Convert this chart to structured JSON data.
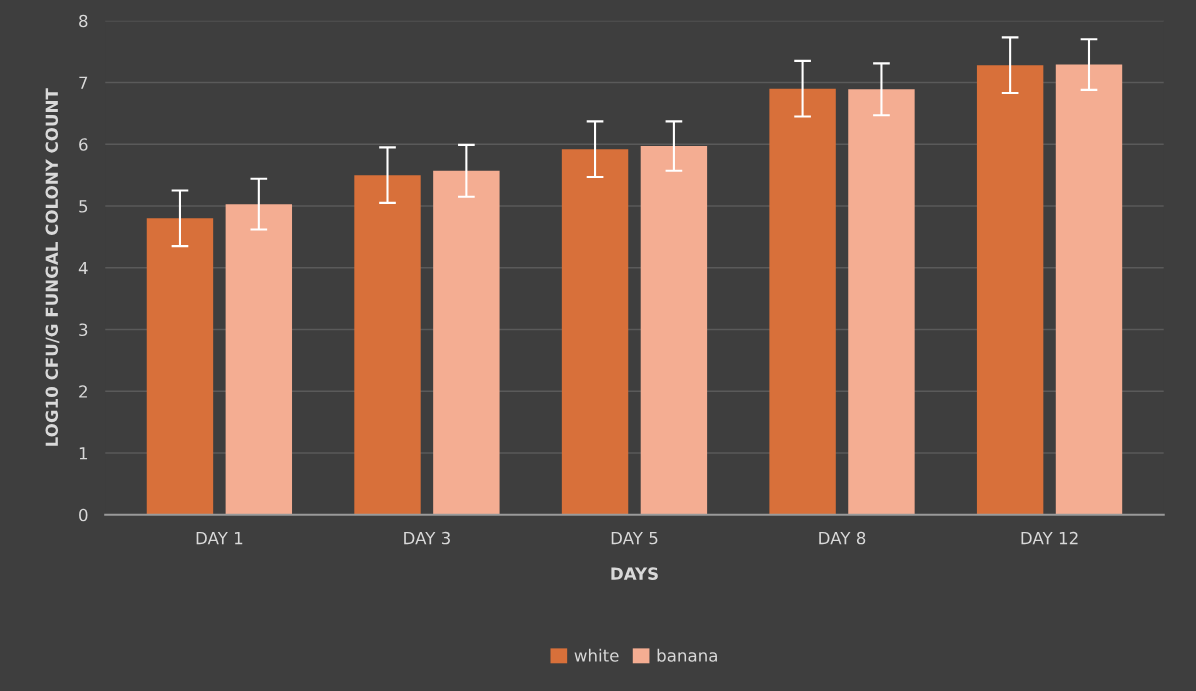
{
  "chart_data": {
    "type": "bar",
    "xlabel": "DAYS",
    "ylabel": "LOG10 CFU/G FUNGAL COLONY COUNT",
    "categories": [
      "DAY 1",
      "DAY 3",
      "DAY 5",
      "DAY 8",
      "DAY 12"
    ],
    "series": [
      {
        "name": "white",
        "color": "#d8703a",
        "values": [
          4.8,
          5.5,
          5.92,
          6.9,
          7.28
        ],
        "errors": [
          0.45,
          0.45,
          0.45,
          0.45,
          0.45
        ]
      },
      {
        "name": "banana",
        "color": "#f4ad92",
        "values": [
          5.03,
          5.57,
          5.97,
          6.89,
          7.29
        ],
        "errors": [
          0.41,
          0.42,
          0.4,
          0.42,
          0.41
        ]
      }
    ],
    "ylim": [
      0,
      8
    ],
    "yticks": [
      0,
      1,
      2,
      3,
      4,
      5,
      6,
      7,
      8
    ],
    "grid": "y",
    "legend": "bottom"
  }
}
